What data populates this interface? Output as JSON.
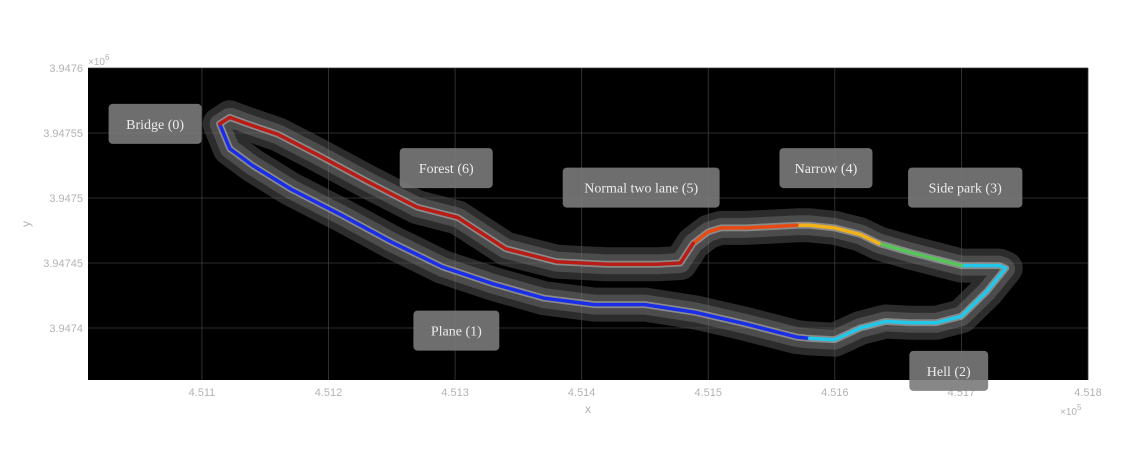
{
  "chart_data": {
    "type": "line",
    "xlabel": "x",
    "ylabel": "y",
    "x_exponent": "×10^5",
    "y_exponent": "×10^6",
    "x_multiplier_label": "×10",
    "x_multiplier_power": "5",
    "y_multiplier_label": "×10",
    "y_multiplier_power": "6",
    "xlim": [
      4.5101,
      4.518
    ],
    "ylim": [
      3.94736,
      3.9476
    ],
    "x_ticks": [
      4.511,
      4.512,
      4.513,
      4.514,
      4.515,
      4.516,
      4.517,
      4.518
    ],
    "x_tick_labels": [
      "4.511",
      "4.512",
      "4.513",
      "4.514",
      "4.515",
      "4.516",
      "4.517",
      "4.518"
    ],
    "y_ticks": [
      3.9474,
      3.94745,
      3.9475,
      3.94755,
      3.9476
    ],
    "y_tick_labels": [
      "3.9474",
      "3.94745",
      "3.9475",
      "3.94755",
      "3.9476"
    ],
    "grid": true,
    "background": "#000000",
    "series": [
      {
        "color": "#1a2ee8",
        "x": [
          4.51114,
          4.51122,
          4.5114,
          4.5117,
          4.5121,
          4.5125,
          4.5129,
          4.5133,
          4.5137,
          4.5141,
          4.5145,
          4.5149,
          4.5153,
          4.5157,
          4.5158
        ],
        "y": [
          3.947557,
          3.947538,
          3.947525,
          3.947507,
          3.947487,
          3.947466,
          3.947447,
          3.947434,
          3.947423,
          3.947418,
          3.947418,
          3.947412,
          3.947403,
          3.947393,
          3.947392
        ]
      },
      {
        "color": "#22c8ea",
        "x": [
          4.5158,
          4.516,
          4.5162,
          4.5164,
          4.5166,
          4.5168,
          4.517,
          4.5172,
          4.51735,
          4.5173,
          4.51712,
          4.517
        ],
        "y": [
          3.947392,
          3.947391,
          3.9474,
          3.947405,
          3.947404,
          3.947404,
          3.947409,
          3.947428,
          3.947446,
          3.947448,
          3.947448,
          3.947448
        ]
      },
      {
        "color": "#56c65a",
        "x": [
          4.517,
          4.5168,
          4.5166,
          4.51635
        ],
        "y": [
          3.947448,
          3.947453,
          3.947458,
          3.947465
        ]
      },
      {
        "color": "#f2b21a",
        "x": [
          4.51635,
          4.5162,
          4.516,
          4.5158,
          4.5157
        ],
        "y": [
          3.947465,
          3.947472,
          3.947477,
          3.947479,
          3.947479
        ]
      },
      {
        "color": "#e84a14",
        "x": [
          4.5157,
          4.5155,
          4.5153,
          4.5151,
          4.515,
          4.51488
        ],
        "y": [
          3.947479,
          3.947478,
          3.947477,
          3.947477,
          3.947474,
          3.947465
        ]
      },
      {
        "color": "#b81c14",
        "x": [
          4.51488,
          4.51478,
          4.5146,
          4.5142,
          4.5138,
          4.5134,
          4.51302,
          4.5127,
          4.5123,
          4.5119,
          4.5116,
          4.51136,
          4.51122,
          4.51114
        ],
        "y": [
          3.947465,
          3.94745,
          3.947449,
          3.947449,
          3.947451,
          3.947461,
          3.947485,
          3.947493,
          3.947513,
          3.947534,
          3.947549,
          3.947557,
          3.947562,
          3.947557
        ]
      }
    ],
    "annotations": [
      {
        "text": "Bridge (0)",
        "x": 4.51063,
        "y": 3.947557
      },
      {
        "text": "Forest (6)",
        "x": 4.51293,
        "y": 3.947523
      },
      {
        "text": "Normal two lane (5)",
        "x": 4.51447,
        "y": 3.947508
      },
      {
        "text": "Narrow (4)",
        "x": 4.51593,
        "y": 3.947523
      },
      {
        "text": "Side park (3)",
        "x": 4.51703,
        "y": 3.947508
      },
      {
        "text": "Plane (1)",
        "x": 4.51301,
        "y": 3.947398
      },
      {
        "text": "Hell (2)",
        "x": 4.5169,
        "y": 3.947367
      }
    ]
  }
}
